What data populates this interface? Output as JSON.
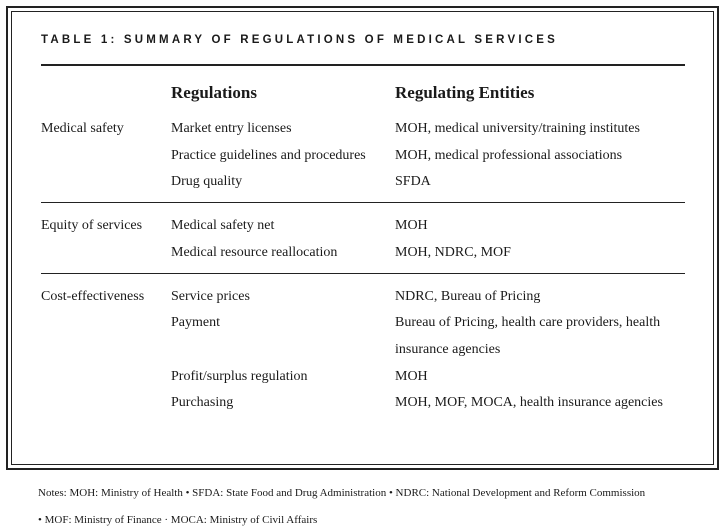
{
  "title": "TABLE 1: SUMMARY OF REGULATIONS OF MEDICAL SERVICES",
  "table": {
    "header": [
      "Regulations",
      "Regulating Entities"
    ],
    "groups": [
      {
        "category": "Medical safety",
        "rows": [
          {
            "regulation": "Market entry licenses",
            "entities": "MOH, medical university/training institutes"
          },
          {
            "regulation": "Practice guidelines and procedures",
            "entities": "MOH, medical professional associations"
          },
          {
            "regulation": "Drug quality",
            "entities": "SFDA"
          }
        ]
      },
      {
        "category": "Equity of services",
        "rows": [
          {
            "regulation": "Medical safety net",
            "entities": "MOH"
          },
          {
            "regulation": "Medical resource reallocation",
            "entities": "MOH, NDRC, MOF"
          }
        ]
      },
      {
        "category": "Cost-effectiveness",
        "rows": [
          {
            "regulation": "Service prices",
            "entities": "NDRC, Bureau of Pricing"
          },
          {
            "regulation": "Payment",
            "entities": "Bureau of Pricing, health care providers, health insurance agencies"
          },
          {
            "regulation": "Profit/surplus regulation",
            "entities": "MOH"
          },
          {
            "regulation": "Purchasing",
            "entities": "MOH, MOF, MOCA, health insurance agencies"
          }
        ]
      }
    ]
  },
  "notes": "Notes:  MOH: Ministry of Health  •  SFDA: State Food and Drug Administration  •  NDRC: National Development and Reform Commission  •  MOF: Ministry of Finance · MOCA: Ministry of Civil Affairs"
}
